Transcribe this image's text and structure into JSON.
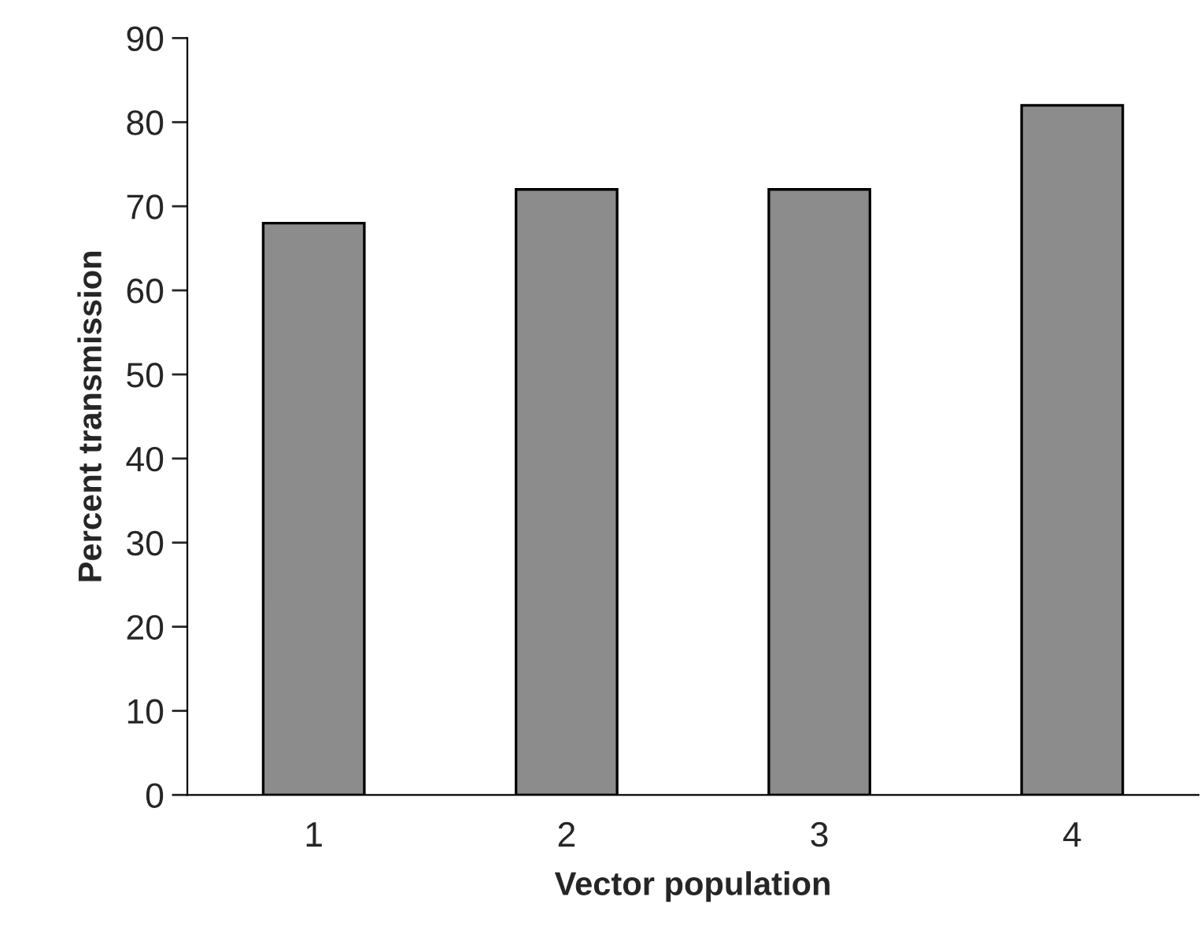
{
  "chart_data": {
    "type": "bar",
    "xlabel": "Vector population",
    "ylabel": "Percent transmission",
    "categories": [
      "1",
      "2",
      "3",
      "4"
    ],
    "series": [
      {
        "color": "#8c8c8c",
        "values": [
          68,
          72,
          72,
          82
        ]
      }
    ],
    "ylim": [
      0,
      90
    ],
    "yticks": [
      0,
      10,
      20,
      30,
      40,
      50,
      60,
      70,
      80,
      90
    ],
    "grid": false,
    "legend": false
  }
}
